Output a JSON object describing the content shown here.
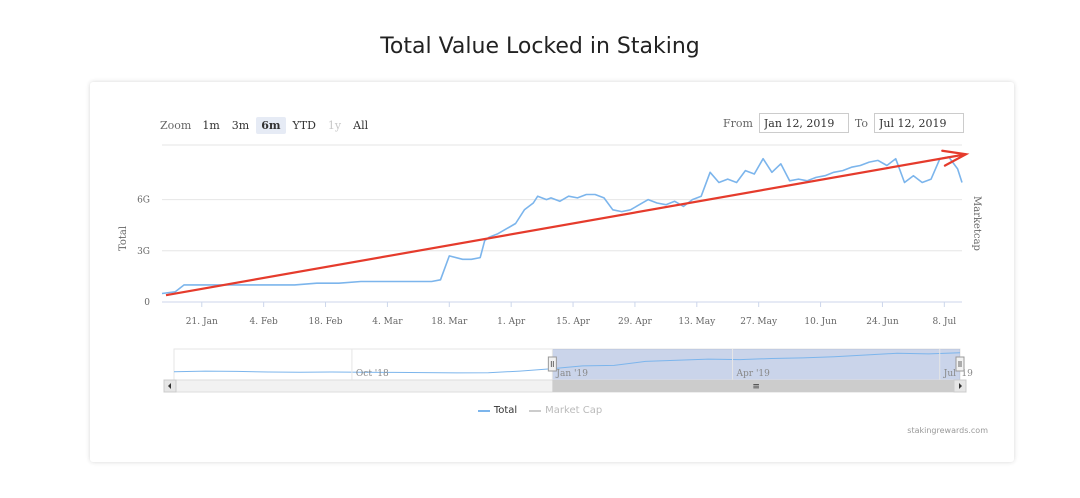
{
  "chart_data": {
    "type": "line",
    "title": "Total Value Locked in Staking",
    "xlabel": "",
    "ylabel": "Total",
    "y2label": "Marketcap",
    "ylim": [
      0,
      9.2
    ],
    "yticks": [
      {
        "value": 0,
        "label": "0"
      },
      {
        "value": 3,
        "label": "3G"
      },
      {
        "value": 6,
        "label": "6G"
      }
    ],
    "xlim": [
      0,
      181
    ],
    "xticks": [
      {
        "day": 9,
        "label": "21. Jan"
      },
      {
        "day": 23,
        "label": "4. Feb"
      },
      {
        "day": 37,
        "label": "18. Feb"
      },
      {
        "day": 51,
        "label": "4. Mar"
      },
      {
        "day": 65,
        "label": "18. Mar"
      },
      {
        "day": 79,
        "label": "1. Apr"
      },
      {
        "day": 93,
        "label": "15. Apr"
      },
      {
        "day": 107,
        "label": "29. Apr"
      },
      {
        "day": 121,
        "label": "13. May"
      },
      {
        "day": 135,
        "label": "27. May"
      },
      {
        "day": 149,
        "label": "10. Jun"
      },
      {
        "day": 163,
        "label": "24. Jun"
      },
      {
        "day": 177,
        "label": "8. Jul"
      }
    ],
    "series": [
      {
        "name": "Total",
        "color": "#7cb5ec",
        "x": [
          0,
          3,
          5,
          10,
          15,
          20,
          25,
          30,
          35,
          40,
          45,
          50,
          55,
          58,
          61,
          63,
          65,
          68,
          70,
          72,
          73,
          74,
          76,
          78,
          80,
          82,
          84,
          85,
          87,
          88,
          90,
          92,
          94,
          96,
          98,
          100,
          102,
          104,
          106,
          108,
          110,
          112,
          114,
          116,
          118,
          120,
          122,
          124,
          126,
          128,
          130,
          132,
          134,
          136,
          138,
          140,
          142,
          144,
          146,
          148,
          150,
          152,
          154,
          156,
          158,
          160,
          162,
          164,
          166,
          168,
          170,
          172,
          174,
          176,
          178,
          180,
          181
        ],
        "values": [
          0.5,
          0.6,
          1.0,
          1.0,
          1.0,
          1.0,
          1.0,
          1.0,
          1.1,
          1.1,
          1.2,
          1.2,
          1.2,
          1.2,
          1.2,
          1.3,
          2.7,
          2.5,
          2.5,
          2.6,
          3.6,
          3.8,
          4.0,
          4.3,
          4.6,
          5.4,
          5.8,
          6.2,
          6.0,
          6.1,
          5.9,
          6.2,
          6.1,
          6.3,
          6.3,
          6.1,
          5.4,
          5.3,
          5.4,
          5.7,
          6.0,
          5.8,
          5.7,
          5.9,
          5.6,
          6.0,
          6.2,
          7.6,
          7.0,
          7.2,
          7.0,
          7.7,
          7.5,
          8.4,
          7.6,
          8.1,
          7.1,
          7.2,
          7.1,
          7.3,
          7.4,
          7.6,
          7.7,
          7.9,
          8.0,
          8.2,
          8.3,
          8.0,
          8.4,
          7.0,
          7.4,
          7.0,
          7.2,
          8.4,
          8.5,
          7.8,
          7.0
        ]
      },
      {
        "name": "Market Cap",
        "color": "#cccccc",
        "values": []
      }
    ],
    "trend_arrow": {
      "color": "#e53b2c",
      "from": [
        0,
        0.4
      ],
      "to": [
        181,
        8.6
      ]
    },
    "navigator": {
      "labels": [
        "Oct '18",
        "Jan '19",
        "Apr '19",
        "Jul '19"
      ],
      "label_days": [
        -89,
        0,
        80,
        172
      ],
      "span_days": [
        -168,
        181
      ],
      "selected_days": [
        0,
        181
      ],
      "values": [
        0.4,
        0.5,
        0.45,
        0.35,
        0.3,
        0.35,
        0.3,
        0.28,
        0.25,
        0.2,
        0.22,
        0.5,
        0.9,
        1.4,
        1.5,
        2.2,
        2.4,
        2.6,
        2.5,
        2.7,
        2.8,
        3.0,
        3.3,
        3.6,
        3.5,
        3.7
      ]
    }
  },
  "zoom": {
    "label": "Zoom",
    "buttons": [
      {
        "label": "1m",
        "state": "normal"
      },
      {
        "label": "3m",
        "state": "normal"
      },
      {
        "label": "6m",
        "state": "selected"
      },
      {
        "label": "YTD",
        "state": "normal"
      },
      {
        "label": "1y",
        "state": "disabled"
      },
      {
        "label": "All",
        "state": "normal"
      }
    ]
  },
  "range": {
    "from_label": "From",
    "from_value": "Jan 12, 2019",
    "to_label": "To",
    "to_value": "Jul 12, 2019"
  },
  "navigator_scrollbar_icon": "≡",
  "credits": "stakingrewards.com"
}
